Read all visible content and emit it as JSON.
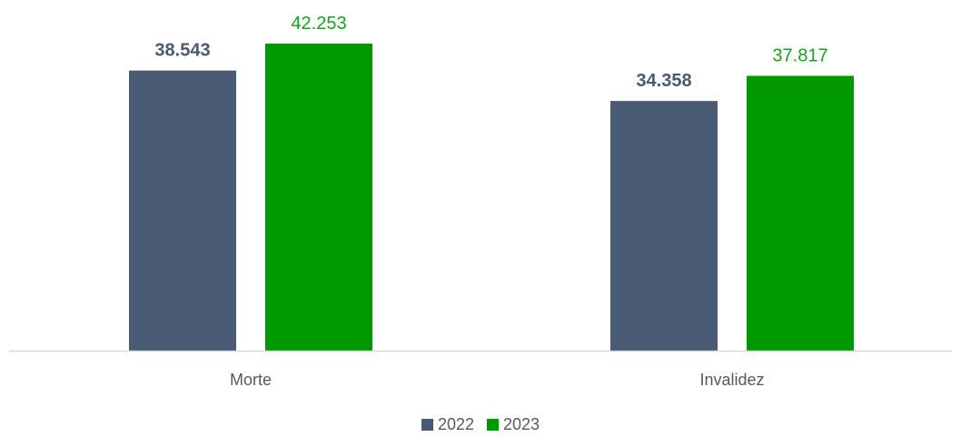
{
  "chart_data": {
    "type": "bar",
    "categories": [
      "Morte",
      "Invalidez"
    ],
    "series": [
      {
        "name": "2022",
        "values": [
          38543,
          34358
        ],
        "labels": [
          "38.543",
          "34.358"
        ],
        "color": "#485a74"
      },
      {
        "name": "2023",
        "values": [
          42253,
          37817
        ],
        "labels": [
          "42.253",
          "37.817"
        ],
        "color": "#009900"
      }
    ],
    "title": "",
    "xlabel": "",
    "ylabel": "",
    "ylim": [
      0,
      44000
    ],
    "grid": false,
    "legend": "bottom-center"
  }
}
